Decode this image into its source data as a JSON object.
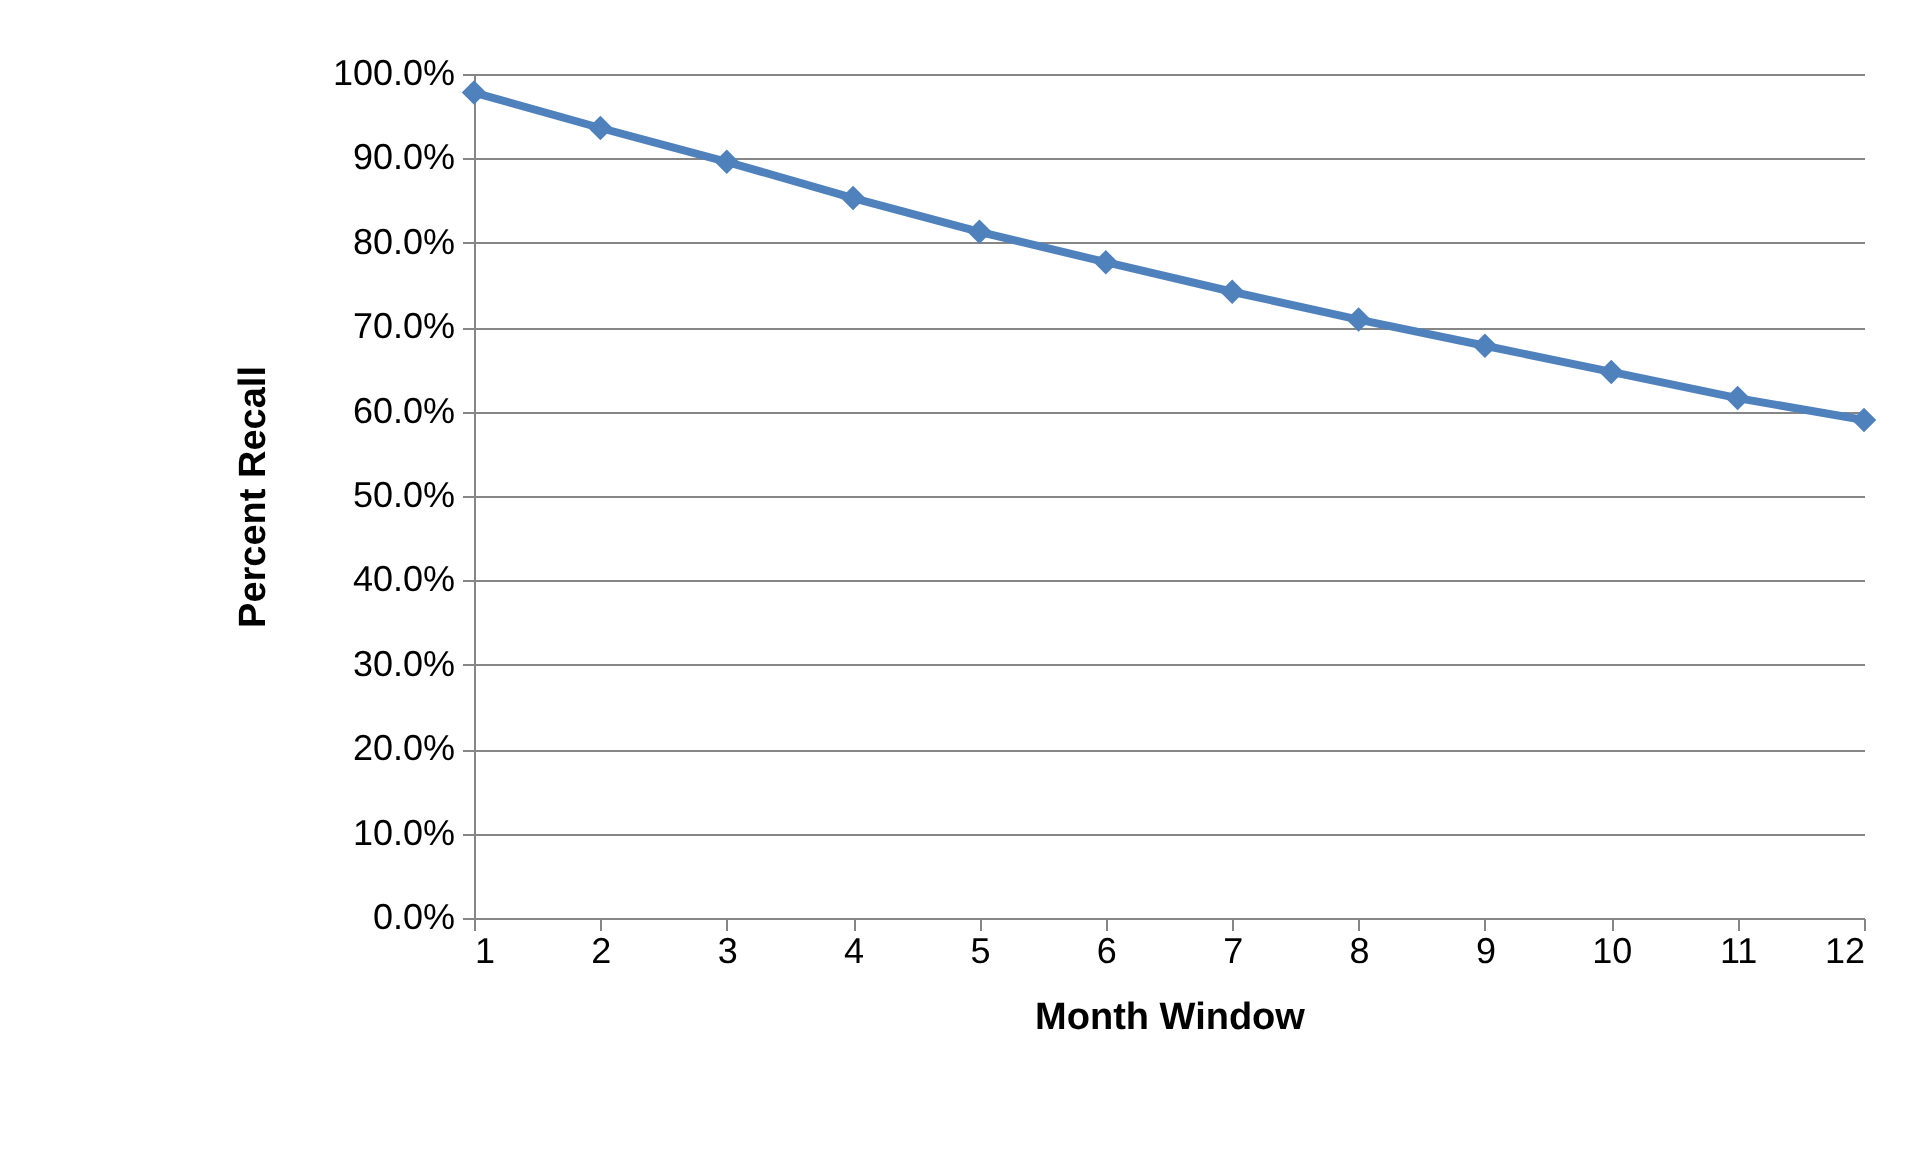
{
  "chart_data": {
    "type": "line",
    "xlabel": "Month Window",
    "ylabel": "Percent Recall",
    "x": [
      1,
      2,
      3,
      4,
      5,
      6,
      7,
      8,
      9,
      10,
      11,
      12
    ],
    "series": [
      {
        "color": "#4f81bd",
        "values": [
          97.8,
          93.6,
          89.6,
          85.3,
          81.3,
          77.7,
          74.2,
          70.9,
          67.8,
          64.7,
          61.6,
          59.0
        ]
      }
    ],
    "xlim": [
      1,
      12
    ],
    "xticks": [
      1,
      2,
      3,
      4,
      5,
      6,
      7,
      8,
      9,
      10,
      11,
      12
    ],
    "ylim": [
      0,
      100
    ],
    "yticks": [
      {
        "value": 0,
        "label": "0.0%"
      },
      {
        "value": 10,
        "label": "10.0%"
      },
      {
        "value": 20,
        "label": "20.0%"
      },
      {
        "value": 30,
        "label": "30.0%"
      },
      {
        "value": 40,
        "label": "40.0%"
      },
      {
        "value": 50,
        "label": "50.0%"
      },
      {
        "value": 60,
        "label": "60.0%"
      },
      {
        "value": 70,
        "label": "70.0%"
      },
      {
        "value": 80,
        "label": "80.0%"
      },
      {
        "value": 90,
        "label": "90.0%"
      },
      {
        "value": 100,
        "label": "100.0%"
      }
    ],
    "grid": "y",
    "marker": "diamond",
    "line_style": "solid"
  }
}
